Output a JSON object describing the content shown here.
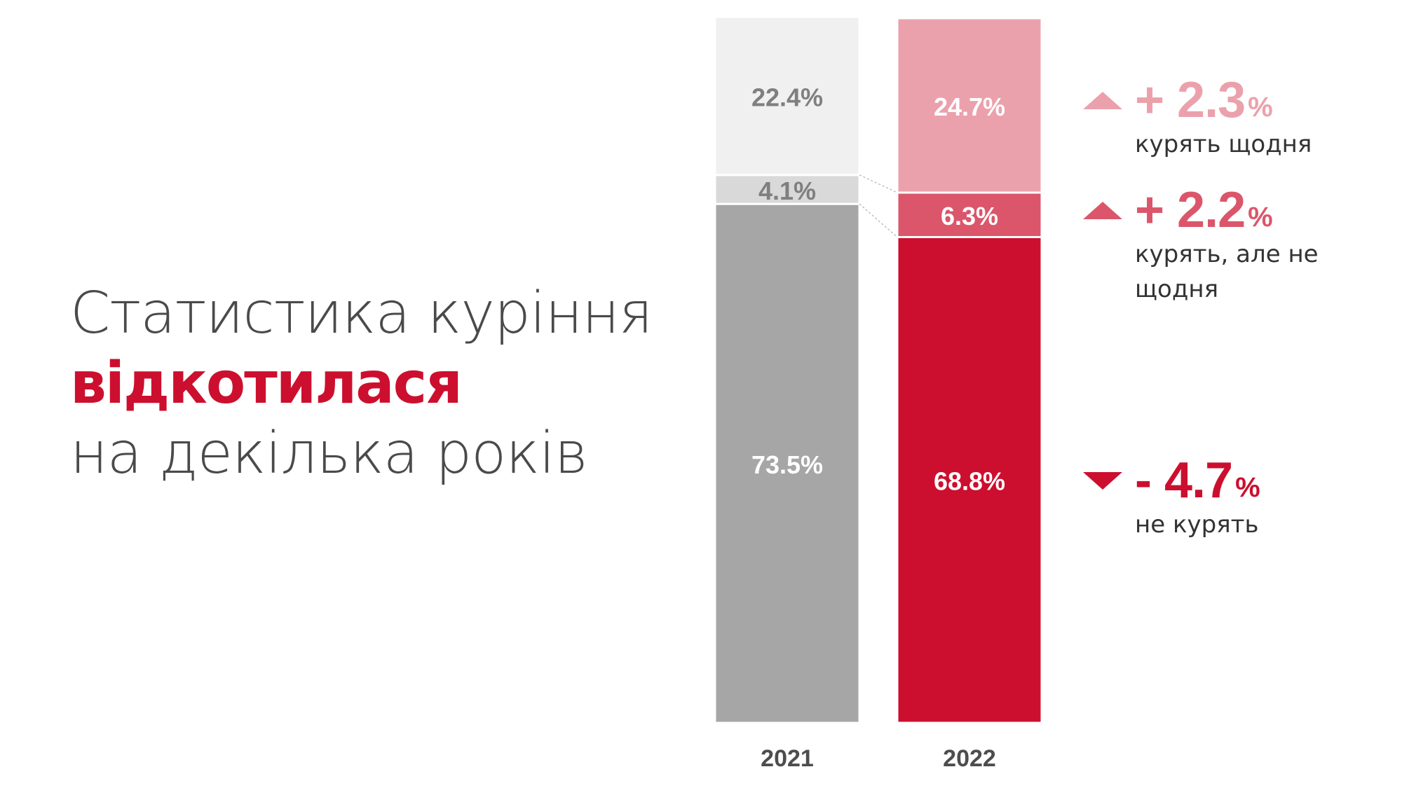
{
  "headline": {
    "line1": "Статистика куріння",
    "line2": "відкотилася",
    "line3": "на декілька років"
  },
  "chart_data": {
    "type": "bar",
    "stacked": true,
    "categories": [
      "2021",
      "2022"
    ],
    "series": [
      {
        "values": [
          73.5,
          68.8
        ],
        "labels": [
          "73.5%",
          "68.8%"
        ],
        "colors": [
          "#a6a6a6",
          "#cc0f2e"
        ]
      },
      {
        "values": [
          4.1,
          6.3
        ],
        "labels": [
          "4.1%",
          "6.3%"
        ],
        "colors": [
          "#d9d9d9",
          "#db566b"
        ]
      },
      {
        "values": [
          22.4,
          24.7
        ],
        "labels": [
          "22.4%",
          "24.7%"
        ],
        "colors": [
          "#f0f0f0",
          "#eba1ac"
        ]
      }
    ],
    "label_colors": [
      "#ffffff",
      "#7f7f7f"
    ],
    "ylim": [
      0,
      100
    ],
    "grid": false,
    "legend": false
  },
  "changes": [
    {
      "direction": "up",
      "value": "+ 2.3",
      "unit": "%",
      "desc": "курять щодня",
      "color": "#eba1ac"
    },
    {
      "direction": "up",
      "value": "+ 2.2",
      "unit": "%",
      "desc": "курять, але не щодня",
      "color": "#db566b"
    },
    {
      "direction": "down",
      "value": "- 4.7",
      "unit": "%",
      "desc": "не курять",
      "color": "#cc0f2e"
    }
  ]
}
